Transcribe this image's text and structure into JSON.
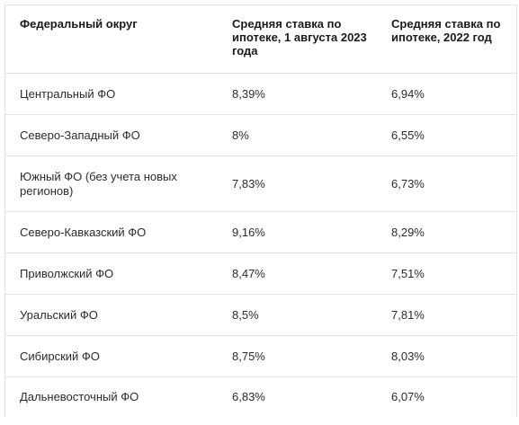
{
  "table": {
    "headers": [
      "Федеральный округ",
      "Средняя ставка по ипотеке, 1 августа 2023 года",
      "Средняя ставка по ипотеке, 2022 год"
    ],
    "rows": [
      {
        "district": "Центральный ФО",
        "rate_2023": "8,39%",
        "rate_2022": "6,94%"
      },
      {
        "district": "Северо-Западный ФО",
        "rate_2023": "8%",
        "rate_2022": "6,55%"
      },
      {
        "district": "Южный ФО (без учета новых регионов)",
        "rate_2023": "7,83%",
        "rate_2022": "6,73%"
      },
      {
        "district": "Северо-Кавказский ФО",
        "rate_2023": "9,16%",
        "rate_2022": "8,29%"
      },
      {
        "district": "Приволжский ФО",
        "rate_2023": "8,47%",
        "rate_2022": "7,51%"
      },
      {
        "district": "Уральский ФО",
        "rate_2023": "8,5%",
        "rate_2022": "7,81%"
      },
      {
        "district": "Сибирский ФО",
        "rate_2023": "8,75%",
        "rate_2022": "8,03%"
      },
      {
        "district": "Дальневосточный ФО",
        "rate_2023": "6,83%",
        "rate_2022": "6,07%"
      }
    ]
  }
}
